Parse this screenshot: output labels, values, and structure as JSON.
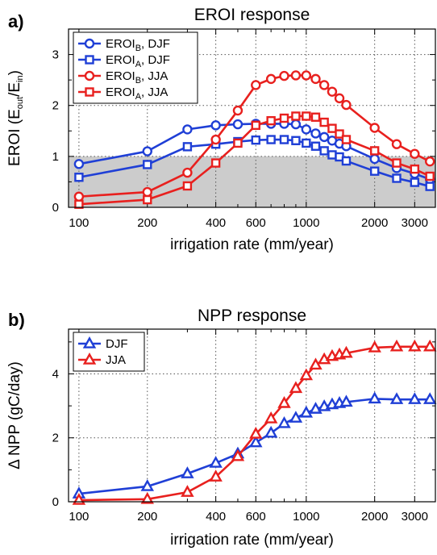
{
  "colors": {
    "blue": "#1f3fd6",
    "red": "#e8201e",
    "shade": "#cccccc",
    "grid": "#555555"
  },
  "chart_data": [
    {
      "type": "line",
      "panel_label": "a)",
      "title": "EROI response",
      "xlabel": "irrigation rate (mm/year)",
      "ylabel": {
        "main": "EROI (E",
        "sub1": "out",
        "mid": "/E",
        "sub2": "in",
        "end": ")"
      },
      "xscale": "log",
      "xlim": [
        90,
        3700
      ],
      "ylim": [
        0,
        3.5
      ],
      "xticks": [
        100,
        200,
        400,
        600,
        1000,
        2000,
        3000
      ],
      "xtick_labels": [
        "100",
        "200",
        "400",
        "600",
        "1000",
        "2000",
        "3000"
      ],
      "yticks": [
        0,
        1,
        2,
        3
      ],
      "ytick_labels": [
        "0",
        "1",
        "2",
        "3"
      ],
      "grid": true,
      "shaded_region": {
        "y_from": 0,
        "y_to": 1
      },
      "legend_position": "top-left",
      "x": [
        100,
        200,
        300,
        400,
        500,
        600,
        700,
        800,
        900,
        1000,
        1100,
        1200,
        1300,
        1400,
        1500,
        2000,
        2500,
        3000,
        3500
      ],
      "series": [
        {
          "name": "EROI",
          "name_sub": "B",
          "name_suffix": ", DJF",
          "color": "blue",
          "marker": "circle",
          "values": [
            0.85,
            1.1,
            1.53,
            1.61,
            1.63,
            1.64,
            1.64,
            1.64,
            1.63,
            1.53,
            1.45,
            1.38,
            1.31,
            1.25,
            1.2,
            0.95,
            0.77,
            0.66,
            0.55
          ]
        },
        {
          "name": "EROI",
          "name_sub": "A",
          "name_suffix": ", DJF",
          "color": "blue",
          "marker": "square",
          "values": [
            0.59,
            0.84,
            1.19,
            1.24,
            1.29,
            1.32,
            1.33,
            1.33,
            1.31,
            1.26,
            1.2,
            1.11,
            1.03,
            0.99,
            0.91,
            0.71,
            0.57,
            0.49,
            0.41
          ]
        },
        {
          "name": "EROI",
          "name_sub": "B",
          "name_suffix": ", JJA",
          "color": "red",
          "marker": "circle",
          "values": [
            0.21,
            0.3,
            0.68,
            1.33,
            1.9,
            2.4,
            2.52,
            2.58,
            2.59,
            2.59,
            2.52,
            2.4,
            2.27,
            2.14,
            2.01,
            1.56,
            1.24,
            1.05,
            0.9
          ]
        },
        {
          "name": "EROI",
          "name_sub": "A",
          "name_suffix": ", JJA",
          "color": "red",
          "marker": "square",
          "values": [
            0.06,
            0.15,
            0.42,
            0.87,
            1.26,
            1.61,
            1.7,
            1.75,
            1.79,
            1.79,
            1.77,
            1.67,
            1.55,
            1.44,
            1.33,
            1.11,
            0.87,
            0.75,
            0.61
          ]
        }
      ]
    },
    {
      "type": "line",
      "panel_label": "b)",
      "title": "NPP response",
      "xlabel": "irrigation rate (mm/year)",
      "ylabel": {
        "main": "Δ NPP (gC/day)"
      },
      "xscale": "log",
      "xlim": [
        90,
        3700
      ],
      "ylim": [
        0,
        5.4
      ],
      "xticks": [
        100,
        200,
        400,
        600,
        1000,
        2000,
        3000
      ],
      "xtick_labels": [
        "100",
        "200",
        "400",
        "600",
        "1000",
        "2000",
        "3000"
      ],
      "yticks": [
        0,
        2,
        4
      ],
      "ytick_labels": [
        "0",
        "2",
        "4"
      ],
      "grid": true,
      "legend_position": "top-left",
      "x": [
        100,
        200,
        300,
        400,
        500,
        600,
        700,
        800,
        900,
        1000,
        1100,
        1200,
        1300,
        1400,
        1500,
        2000,
        2500,
        3000,
        3500
      ],
      "series": [
        {
          "name": "DJF",
          "color": "blue",
          "marker": "triangle",
          "values": [
            0.25,
            0.48,
            0.88,
            1.21,
            1.5,
            1.85,
            2.15,
            2.45,
            2.62,
            2.78,
            2.9,
            2.98,
            3.04,
            3.08,
            3.12,
            3.22,
            3.2,
            3.2,
            3.2
          ]
        },
        {
          "name": "JJA",
          "color": "red",
          "marker": "triangle",
          "values": [
            0.05,
            0.08,
            0.3,
            0.78,
            1.42,
            2.12,
            2.6,
            3.08,
            3.55,
            3.95,
            4.28,
            4.45,
            4.55,
            4.6,
            4.65,
            4.82,
            4.85,
            4.85,
            4.85
          ]
        }
      ]
    }
  ]
}
